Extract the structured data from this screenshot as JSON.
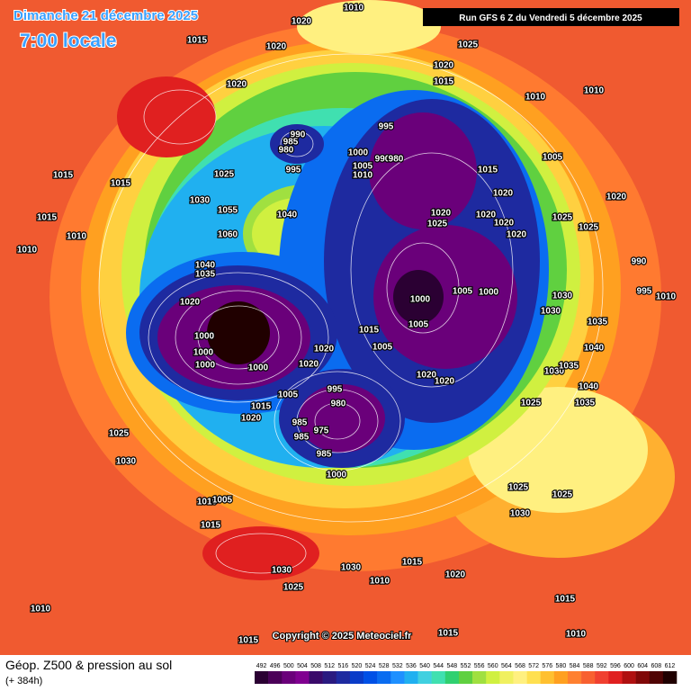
{
  "header": {
    "date": "Dimanche 21 décembre 2025",
    "time": "7:00 locale",
    "run": "Run GFS 6 Z du Vendredi 5 décembre 2025"
  },
  "copyright": "Copyright © 2025 Meteociel.fr",
  "footer": {
    "title": "Géop. Z500 & pression au sol",
    "lead": "(+ 384h)"
  },
  "scale": {
    "labels": [
      492,
      496,
      500,
      504,
      508,
      512,
      516,
      520,
      524,
      528,
      532,
      536,
      540,
      544,
      548,
      552,
      556,
      560,
      564,
      568,
      572,
      576,
      580,
      584,
      588,
      592,
      596,
      600,
      604,
      608,
      612
    ],
    "colors": [
      "#2b0033",
      "#4b0058",
      "#6a007a",
      "#800090",
      "#3a0a6a",
      "#2a1a80",
      "#1e2aa0",
      "#0a3cc8",
      "#0050e6",
      "#0a6cf0",
      "#1e90ff",
      "#20b0f0",
      "#40d0e0",
      "#40e0b0",
      "#30d070",
      "#60d040",
      "#a0e040",
      "#d0f040",
      "#f0f060",
      "#fff080",
      "#ffe050",
      "#ffc030",
      "#ffa020",
      "#ff8030",
      "#f86030",
      "#f04030",
      "#e02020",
      "#b01010",
      "#800808",
      "#500404",
      "#200000"
    ]
  },
  "pressure_labels": [
    "1010",
    "1020",
    "1015",
    "1020",
    "1025",
    "1020",
    "1015",
    "1020",
    "1010",
    "1010",
    "995",
    "990",
    "985",
    "980",
    "1000",
    "990",
    "980",
    "1005",
    "1010",
    "995",
    "1015",
    "1005",
    "1025",
    "1015",
    "1015",
    "1020",
    "1020",
    "1030",
    "1055",
    "1040",
    "1020",
    "1025",
    "1020",
    "1020",
    "1025",
    "1015",
    "1010",
    "1020",
    "1025",
    "1010",
    "1060",
    "1040",
    "1035",
    "990",
    "1020",
    "1000",
    "1005",
    "1000",
    "1030",
    "1030",
    "995",
    "1010",
    "1005",
    "1035",
    "1000",
    "1000",
    "1000",
    "1000",
    "1015",
    "1005",
    "1020",
    "1020",
    "1040",
    "1030",
    "1035",
    "1020",
    "1020",
    "1040",
    "1005",
    "995",
    "980",
    "1015",
    "1020",
    "985",
    "975",
    "985",
    "985",
    "1035",
    "1025",
    "1025",
    "1030",
    "1000",
    "1025",
    "1025",
    "1010",
    "1005",
    "1030",
    "1015",
    "1015",
    "1030",
    "1030",
    "1020",
    "1025",
    "1010",
    "1015",
    "1010",
    "1015",
    "1010",
    "1015"
  ]
}
